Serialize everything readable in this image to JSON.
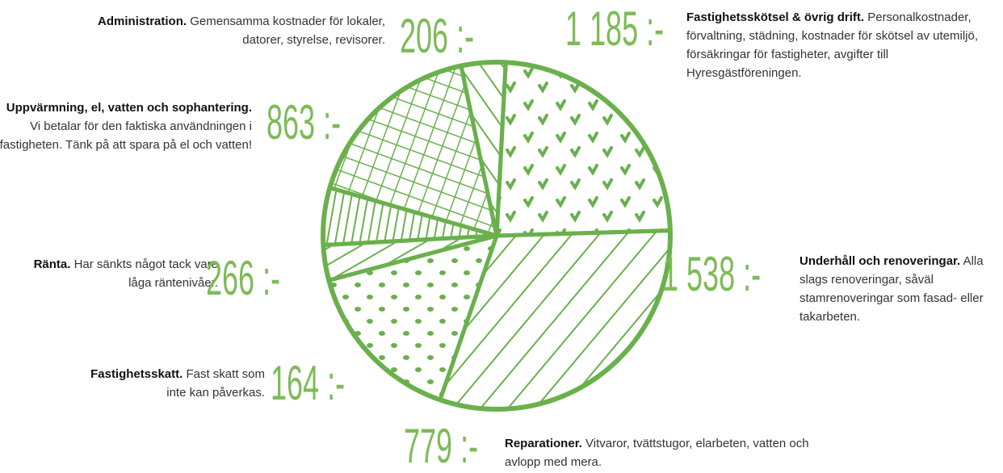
{
  "chart_data": {
    "type": "pie",
    "categories": [
      "Fastighetsskötsel & övrig drift.",
      "Underhåll och renoveringar.",
      "Reparationer.",
      "Fastighetsskatt.",
      "Ränta.",
      "Uppvärmning, el, vatten och sophantering.",
      "Administration."
    ],
    "descriptions": [
      "Personal­kostnader, förvaltning, städning, kostnader för skötsel av utemiljö, försäkringar för fastigheter, avgifter till Hyresgästföreningen.",
      "Alla slags renoveringar, såväl stamrenoveringar som fasad- eller takarbeten.",
      "Vitvaror, tvättstugor, elarbeten, vatten och avlopp med mera.",
      "Fast skatt som inte kan påverkas.",
      "Har sänkts något tack vare låga räntenivåer.",
      "Vi betalar för den faktiska användningen i fastigheten. Tänk på att spara på el och vatten!",
      "Gemensamma kostnader för lokaler, datorer, styrelse, revisorer."
    ],
    "values": [
      1185,
      1538,
      779,
      164,
      266,
      863,
      206
    ],
    "value_labels": [
      "1 185 :-",
      "1 538 :-",
      "779 :-",
      "164 :-",
      "266 :-",
      "863 :-",
      "206 :-"
    ],
    "color": "#6ab04c"
  }
}
